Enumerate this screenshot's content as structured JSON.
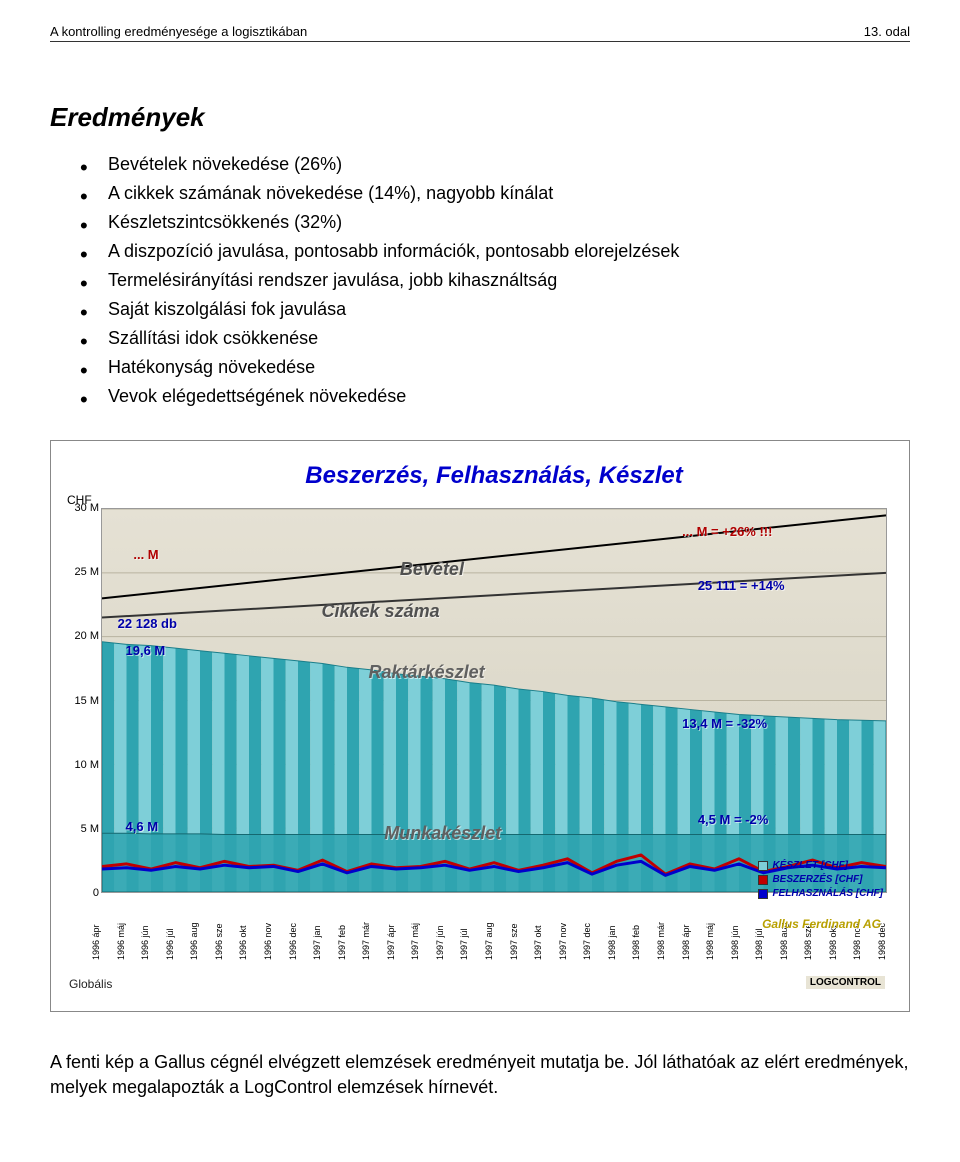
{
  "header": {
    "left": "A kontrolling eredményesége a logisztikában",
    "right": "13. odal"
  },
  "section_title": "Eredmények",
  "bullets": [
    "Bevételek növekedése (26%)",
    "A cikkek számának növekedése (14%), nagyobb kínálat",
    "Készletszintcsökkenés (32%)",
    "A diszpozíció javulása, pontosabb információk, pontosabb elorejelzések",
    "Termelésirányítási rendszer javulása, jobb kihasználtság",
    "Saját kiszolgálási fok javulása",
    "Szállítási idok csökkenése",
    "Hatékonyság növekedése",
    "Vevok elégedettségének növekedése"
  ],
  "chart": {
    "type": "combo-area-line",
    "title": "Beszerzés, Felhasználás, Készlet",
    "y_label": "CHF",
    "y_ticks": [
      "0",
      "5 M",
      "10 M",
      "15 M",
      "20 M",
      "25 M",
      "30 M"
    ],
    "y_tick_vals": [
      0,
      5,
      10,
      15,
      20,
      25,
      30
    ],
    "ylim": [
      0,
      30
    ],
    "x_labels": [
      "1996 ápr",
      "1996 máj",
      "1996 jún",
      "1996 júl",
      "1996 aug",
      "1996 sze",
      "1996 okt",
      "1996 nov",
      "1996 dec",
      "1997 jan",
      "1997 feb",
      "1997 már",
      "1997 ápr",
      "1997 máj",
      "1997 jún",
      "1997 júl",
      "1997 aug",
      "1997 sze",
      "1997 okt",
      "1997 nov",
      "1997 dec",
      "1998 jan",
      "1998 feb",
      "1998 már",
      "1998 ápr",
      "1998 máj",
      "1998 jún",
      "1998 júl",
      "1998 aug",
      "1998 sze",
      "1998 okt",
      "1998 nov",
      "1998 dec"
    ],
    "right_label_top": "1996 ápr",
    "right_label_bottom": "1998 dec",
    "background_top": "#e5e1d4",
    "background_bottom": "#d6d2c2",
    "area_fill_colors": [
      "#2fa4b0",
      "#7ecfd8"
    ],
    "bevetel_line_color": "#000000",
    "bevetel_start": 23.0,
    "bevetel_end": 29.5,
    "cikkek_start": 21.5,
    "cikkek_end": 25.0,
    "raktar_series": [
      19.6,
      19.4,
      19.3,
      19.1,
      18.9,
      18.7,
      18.5,
      18.3,
      18.1,
      17.9,
      17.6,
      17.4,
      17.1,
      16.9,
      16.7,
      16.4,
      16.2,
      15.9,
      15.7,
      15.4,
      15.2,
      14.9,
      14.7,
      14.5,
      14.3,
      14.1,
      13.9,
      13.8,
      13.7,
      13.6,
      13.5,
      13.45,
      13.4
    ],
    "munkak_series": [
      4.6,
      4.6,
      4.55,
      4.55,
      4.55,
      4.5,
      4.5,
      4.5,
      4.5,
      4.5,
      4.5,
      4.5,
      4.5,
      4.5,
      4.5,
      4.5,
      4.5,
      4.5,
      4.5,
      4.5,
      4.5,
      4.5,
      4.5,
      4.5,
      4.5,
      4.5,
      4.5,
      4.5,
      4.5,
      4.5,
      4.5,
      4.5,
      4.5
    ],
    "beszerzes_series": [
      2.0,
      2.2,
      1.8,
      2.3,
      1.9,
      2.4,
      2.0,
      2.1,
      1.7,
      2.5,
      1.6,
      2.2,
      1.9,
      2.0,
      2.4,
      1.8,
      2.3,
      1.7,
      2.1,
      2.6,
      1.5,
      2.4,
      2.9,
      1.4,
      2.2,
      1.8,
      2.6,
      1.6,
      2.0,
      2.5,
      1.9,
      2.3,
      2.0
    ],
    "felhaszn_series": [
      1.8,
      1.9,
      1.7,
      2.0,
      1.8,
      2.1,
      1.9,
      2.0,
      1.6,
      2.2,
      1.5,
      2.0,
      1.8,
      1.9,
      2.1,
      1.7,
      2.0,
      1.6,
      1.9,
      2.3,
      1.4,
      2.1,
      2.4,
      1.3,
      2.0,
      1.7,
      2.2,
      1.5,
      1.9,
      2.1,
      1.8,
      2.0,
      1.9
    ],
    "overlays": {
      "m_left": {
        "text": "... M",
        "color": "#b00000",
        "left_pct": 4,
        "top_pct": 10
      },
      "m_right": {
        "text": "... M = +26% !!!",
        "color": "#b00000",
        "left_pct": 74,
        "top_pct": 4
      },
      "bevetel": {
        "text": "Bevétel",
        "color": "#505050",
        "left_pct": 38,
        "top_pct": 13
      },
      "cikk_items": {
        "text": "25 111 = +14%",
        "color": "#0000aa",
        "left_pct": 76,
        "top_pct": 18
      },
      "cikk_left": {
        "text": "22 128 db",
        "color": "#0000aa",
        "left_pct": 2,
        "top_pct": 28
      },
      "cikk_label": {
        "text": "Cikkek száma",
        "color": "#505050",
        "left_pct": 28,
        "top_pct": 24
      },
      "raktar_left": {
        "text": "19,6 M",
        "color": "#0000aa",
        "left_pct": 3,
        "top_pct": 35
      },
      "raktar_label": {
        "text": "Raktárkészlet",
        "color": "#606060",
        "left_pct": 34,
        "top_pct": 40
      },
      "raktar_right": {
        "text": "13,4 M = -32%",
        "color": "#0000aa",
        "left_pct": 74,
        "top_pct": 54
      },
      "munkak_left": {
        "text": "4,6 M",
        "color": "#0000aa",
        "left_pct": 3,
        "top_pct": 81
      },
      "munkak_label": {
        "text": "Munkakészlet",
        "color": "#606060",
        "left_pct": 36,
        "top_pct": 82
      },
      "munkak_right": {
        "text": "4,5 M = -2%",
        "color": "#0000aa",
        "left_pct": 76,
        "top_pct": 79
      }
    },
    "legend": [
      {
        "label": "KÉSZLET [CHF]",
        "color": "#7ecfd8"
      },
      {
        "label": "BESZERZÉS [CHF]",
        "color": "#c00000"
      },
      {
        "label": "FELHASZNÁLÁS [CHF]",
        "color": "#0000cc"
      }
    ],
    "bottom_left": "Globális",
    "brand": "Gallus Ferdinand AG",
    "logo": "LOGCONTROL",
    "beszerzes_color": "#c00000",
    "felhaszn_color": "#0000cc",
    "grid_color": "#b8b3a0"
  },
  "footer_para": "A fenti kép a Gallus cégnél elvégzett elemzések eredményeit mutatja be. Jól láthatóak az elért eredmények, melyek megalapozták a LogControl elemzések hírnevét."
}
